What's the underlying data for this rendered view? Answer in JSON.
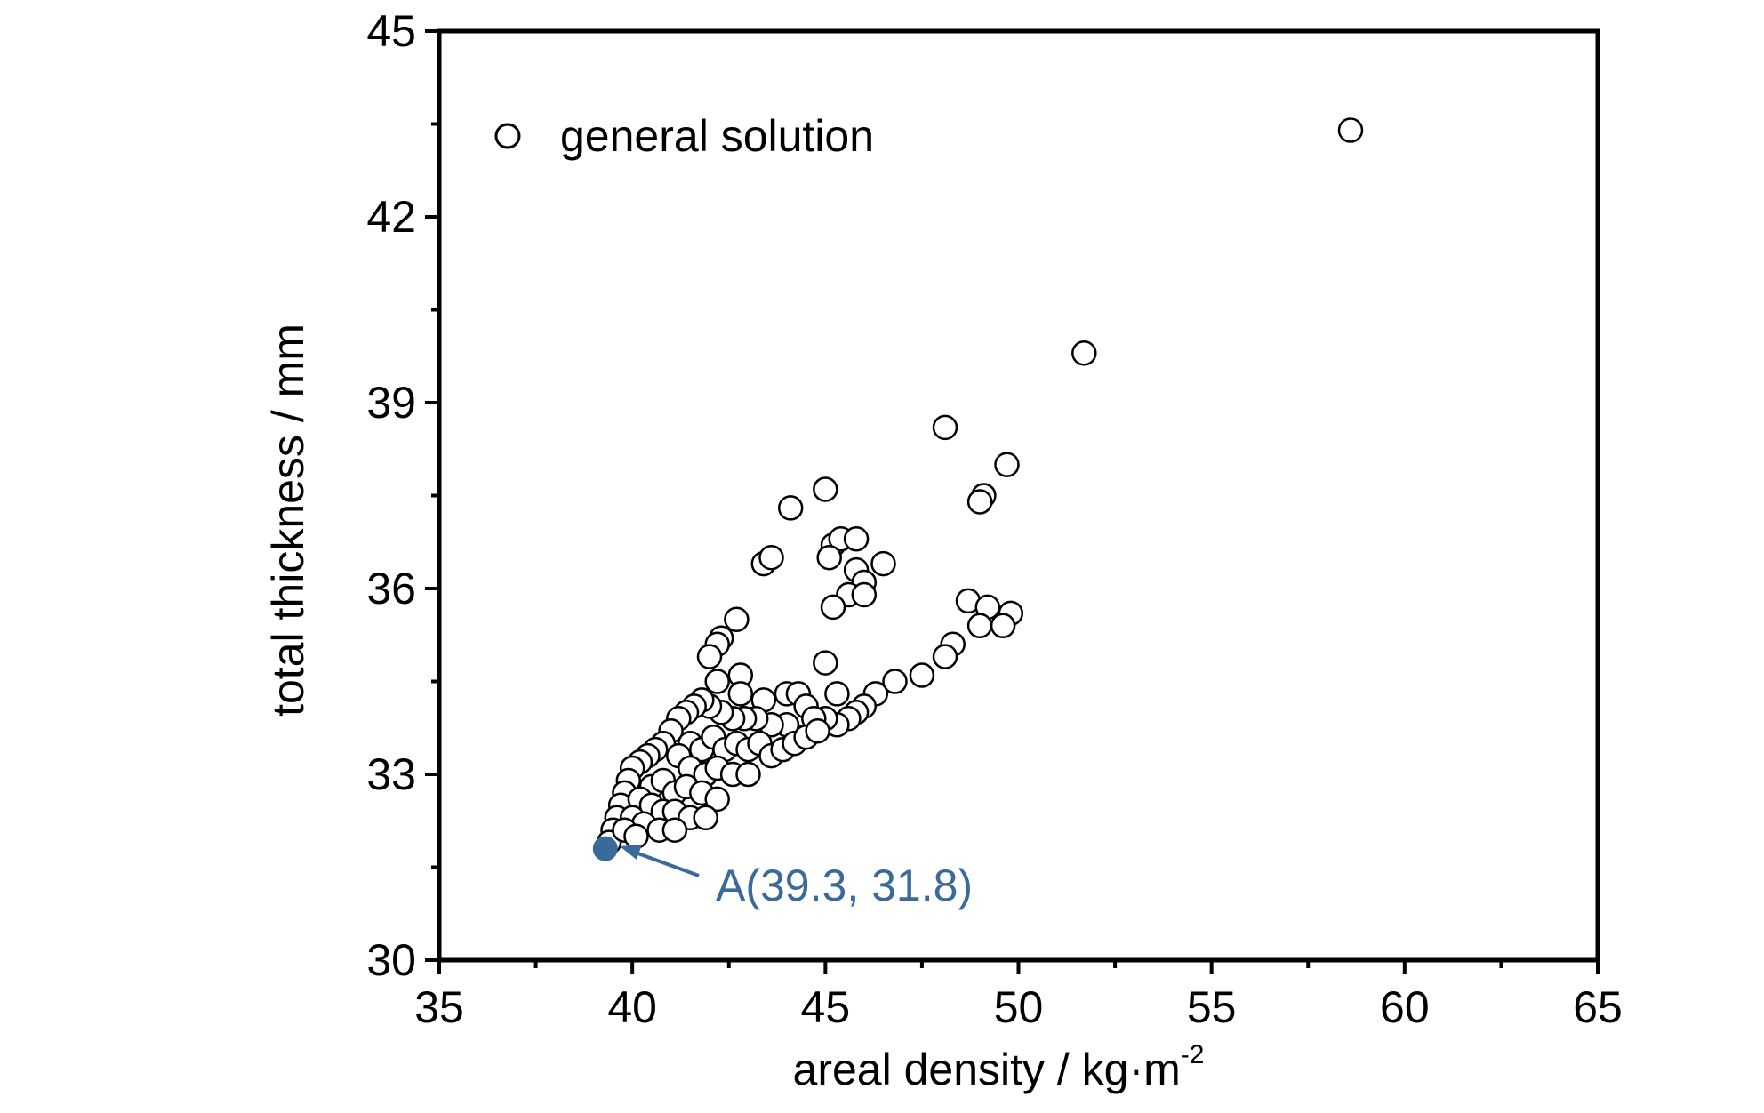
{
  "chart_data": {
    "type": "scatter",
    "title": "",
    "xlabel_main": "areal density / kg·m",
    "xlabel_sup": "-2",
    "ylabel": "total thickness / mm",
    "xlim": [
      35,
      65
    ],
    "ylim": [
      30,
      45
    ],
    "xticks": [
      35,
      40,
      45,
      50,
      55,
      60,
      65
    ],
    "yticks": [
      30,
      33,
      36,
      39,
      42,
      45
    ],
    "grid": false,
    "legend": {
      "position": "top-left",
      "label": "general solution"
    },
    "colors": {
      "axis": "#000000",
      "marker_edge": "#000000",
      "marker_fill": "#ffffff",
      "highlight": "#3a6a9a"
    },
    "series": [
      {
        "name": "general solution",
        "points": [
          [
            58.6,
            43.4
          ],
          [
            51.7,
            39.8
          ],
          [
            48.1,
            38.6
          ],
          [
            49.7,
            38.0
          ],
          [
            49.1,
            37.5
          ],
          [
            49.0,
            37.4
          ],
          [
            45.0,
            37.6
          ],
          [
            44.1,
            37.3
          ],
          [
            43.4,
            36.4
          ],
          [
            43.6,
            36.5
          ],
          [
            45.2,
            36.7
          ],
          [
            45.4,
            36.8
          ],
          [
            45.8,
            36.8
          ],
          [
            46.5,
            36.4
          ],
          [
            45.1,
            36.5
          ],
          [
            45.8,
            36.3
          ],
          [
            46.0,
            36.1
          ],
          [
            45.6,
            35.9
          ],
          [
            46.0,
            35.9
          ],
          [
            45.2,
            35.7
          ],
          [
            48.7,
            35.8
          ],
          [
            49.2,
            35.7
          ],
          [
            49.8,
            35.6
          ],
          [
            49.6,
            35.4
          ],
          [
            49.0,
            35.4
          ],
          [
            42.7,
            35.5
          ],
          [
            42.3,
            35.2
          ],
          [
            42.2,
            35.1
          ],
          [
            42.0,
            34.9
          ],
          [
            48.3,
            35.1
          ],
          [
            48.1,
            34.9
          ],
          [
            45.0,
            34.8
          ],
          [
            42.8,
            34.6
          ],
          [
            47.5,
            34.6
          ],
          [
            46.8,
            34.5
          ],
          [
            45.3,
            34.3
          ],
          [
            46.3,
            34.3
          ],
          [
            42.2,
            34.5
          ],
          [
            42.8,
            34.3
          ],
          [
            43.4,
            34.2
          ],
          [
            44.0,
            34.3
          ],
          [
            44.3,
            34.3
          ],
          [
            44.5,
            34.1
          ],
          [
            46.0,
            34.1
          ],
          [
            45.8,
            34.0
          ],
          [
            45.6,
            33.9
          ],
          [
            45.3,
            33.8
          ],
          [
            45.0,
            33.9
          ],
          [
            44.7,
            33.9
          ],
          [
            44.4,
            33.6
          ],
          [
            44.0,
            33.8
          ],
          [
            43.6,
            33.8
          ],
          [
            43.2,
            33.9
          ],
          [
            42.9,
            33.9
          ],
          [
            42.6,
            33.9
          ],
          [
            42.3,
            34.0
          ],
          [
            42.0,
            34.1
          ],
          [
            41.8,
            34.2
          ],
          [
            41.6,
            34.1
          ],
          [
            41.4,
            34.0
          ],
          [
            41.2,
            33.9
          ],
          [
            41.0,
            33.7
          ],
          [
            40.8,
            33.5
          ],
          [
            40.6,
            33.4
          ],
          [
            40.4,
            33.3
          ],
          [
            40.2,
            33.2
          ],
          [
            40.0,
            33.1
          ],
          [
            39.9,
            32.9
          ],
          [
            39.8,
            32.7
          ],
          [
            39.7,
            32.5
          ],
          [
            39.6,
            32.3
          ],
          [
            39.5,
            32.1
          ],
          [
            39.4,
            31.9
          ],
          [
            41.5,
            33.5
          ],
          [
            41.8,
            33.4
          ],
          [
            42.1,
            33.6
          ],
          [
            42.4,
            33.4
          ],
          [
            42.7,
            33.5
          ],
          [
            43.0,
            33.4
          ],
          [
            43.3,
            33.5
          ],
          [
            43.6,
            33.3
          ],
          [
            43.9,
            33.4
          ],
          [
            44.2,
            33.5
          ],
          [
            44.5,
            33.6
          ],
          [
            44.8,
            33.7
          ],
          [
            41.2,
            33.3
          ],
          [
            41.5,
            33.1
          ],
          [
            41.9,
            33.0
          ],
          [
            42.2,
            33.1
          ],
          [
            42.6,
            33.0
          ],
          [
            43.0,
            33.0
          ],
          [
            40.5,
            32.8
          ],
          [
            40.8,
            32.9
          ],
          [
            41.1,
            32.7
          ],
          [
            41.4,
            32.8
          ],
          [
            41.8,
            32.7
          ],
          [
            42.2,
            32.6
          ],
          [
            40.2,
            32.6
          ],
          [
            40.5,
            32.5
          ],
          [
            40.8,
            32.4
          ],
          [
            41.1,
            32.4
          ],
          [
            41.5,
            32.3
          ],
          [
            41.9,
            32.3
          ],
          [
            40.0,
            32.3
          ],
          [
            40.3,
            32.2
          ],
          [
            40.7,
            32.1
          ],
          [
            41.1,
            32.1
          ],
          [
            39.8,
            32.1
          ],
          [
            40.1,
            32.0
          ]
        ]
      }
    ],
    "highlight_point": {
      "x": 39.3,
      "y": 31.8,
      "label": "A(39.3, 31.8)"
    }
  }
}
